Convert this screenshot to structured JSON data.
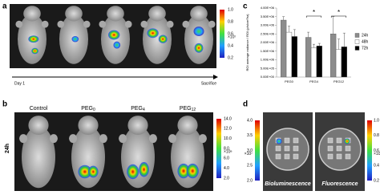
{
  "panel_a": {
    "label": "a",
    "start": "Day 1",
    "end": "Sacrifice",
    "scale_ticks": [
      "1.0",
      "0.8",
      "0.6",
      "0.4",
      "0.2"
    ],
    "scale_unit": "×10⁷"
  },
  "panel_b": {
    "label": "b",
    "time": "24h",
    "groups": [
      {
        "name": "Control"
      },
      {
        "name": "PEG",
        "sub": "0"
      },
      {
        "name": "PEG",
        "sub": "4"
      },
      {
        "name": "PEG",
        "sub": "12"
      }
    ],
    "scale_ticks": [
      "14.0",
      "12.0",
      "10.0",
      "8.0",
      "6.0",
      "4.0",
      "2.0"
    ],
    "scale_unit": "×10⁶"
  },
  "panel_d": {
    "label": "d",
    "images": [
      "Bioluminescence",
      "Fluorescence"
    ],
    "left_ticks": [
      "4.0",
      "3.5",
      "3.0",
      "2.5",
      "2.0"
    ],
    "left_unit": "×10⁷",
    "right_ticks": [
      "1.0",
      "0.8",
      "0.6",
      "0.4",
      "0.2"
    ],
    "right_unit": "×10⁹"
  },
  "chart_data": {
    "type": "bar",
    "label": "c",
    "y_label": "ROI average radiance / ROI (p/s/cm²/sr)",
    "categories": [
      "PEG0",
      "PEG4",
      "PEG12"
    ],
    "series": [
      {
        "name": "24h",
        "color": "#8c8c8c",
        "values": [
          3300000,
          2300000,
          2500000
        ],
        "errors": [
          200000,
          300000,
          1000000
        ]
      },
      {
        "name": "48h",
        "color": "#ffffff",
        "values": [
          2600000,
          1700000,
          1600000
        ],
        "errors": [
          350000,
          200000,
          600000
        ]
      },
      {
        "name": "72h",
        "color": "#000000",
        "values": [
          2350000,
          1800000,
          1750000
        ],
        "errors": [
          400000,
          150000,
          800000
        ]
      }
    ],
    "ylim": [
      0,
      4000000
    ],
    "yticks": [
      {
        "value": 0,
        "label": "0.00E+00"
      },
      {
        "value": 500000,
        "label": "5.00E+05"
      },
      {
        "value": 1000000,
        "label": "1.00E+06"
      },
      {
        "value": 1500000,
        "label": "1.50E+06"
      },
      {
        "value": 2000000,
        "label": "2.00E+06"
      },
      {
        "value": 2500000,
        "label": "2.50E+06"
      },
      {
        "value": 3000000,
        "label": "3.00E+06"
      },
      {
        "value": 3500000,
        "label": "3.50E+06"
      },
      {
        "value": 4000000,
        "label": "4.00E+06"
      }
    ],
    "annotations": [
      "*",
      "*"
    ]
  }
}
